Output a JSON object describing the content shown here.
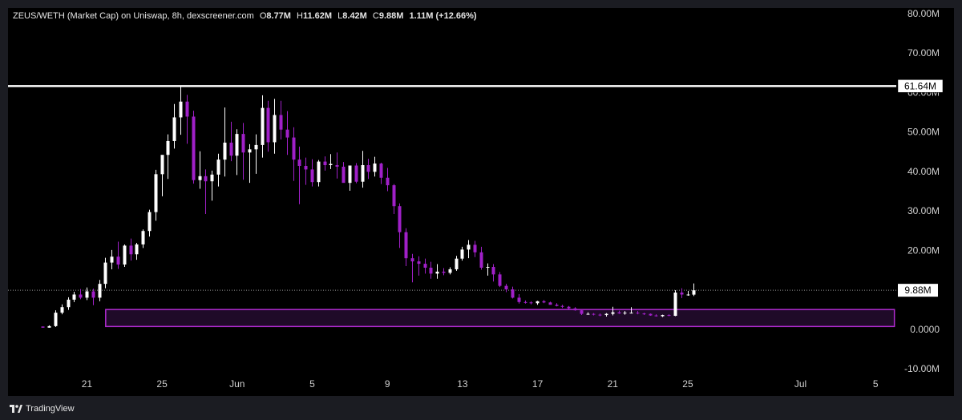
{
  "header": {
    "pair": "ZEUS/WETH (Market Cap) on Uniswap, 8h, dexscreener.com",
    "o_key": "O",
    "o_val": "8.77M",
    "h_key": "H",
    "h_val": "11.62M",
    "l_key": "L",
    "l_val": "8.42M",
    "c_key": "C",
    "c_val": "9.88M",
    "change": "1.11M (+12.66%)"
  },
  "footer": {
    "brand": "TradingView",
    "logo_icon": "tradingview-logo-icon"
  },
  "colors": {
    "up": "#ffffff",
    "down": "#a020c8",
    "zone_fill": "#1f0a28",
    "zone_stroke": "#b02bd0",
    "level_line": "#ffffff"
  },
  "chart_data": {
    "type": "candlestick",
    "title": "",
    "ylim": [
      -10,
      80
    ],
    "y_unit": "M",
    "y_ticks": [
      {
        "value": 80,
        "label": "80.00M"
      },
      {
        "value": 70,
        "label": "70.00M"
      },
      {
        "value": 60,
        "label": "60.00M"
      },
      {
        "value": 50,
        "label": "50.00M"
      },
      {
        "value": 40,
        "label": "40.00M"
      },
      {
        "value": 30,
        "label": "30.00M"
      },
      {
        "value": 20,
        "label": "20.00M"
      },
      {
        "value": 0,
        "label": "0.0000"
      },
      {
        "value": -10,
        "label": "-10.00M"
      }
    ],
    "x_ticks": [
      {
        "day": 21,
        "label": "21"
      },
      {
        "day": 25,
        "label": "25"
      },
      {
        "day": 29,
        "label": "Jun"
      },
      {
        "day": 33,
        "label": "5"
      },
      {
        "day": 37,
        "label": "9"
      },
      {
        "day": 41,
        "label": "13"
      },
      {
        "day": 45,
        "label": "17"
      },
      {
        "day": 49,
        "label": "21"
      },
      {
        "day": 53,
        "label": "25"
      },
      {
        "day": 59,
        "label": "Jul"
      },
      {
        "day": 63,
        "label": "5"
      }
    ],
    "x_range": [
      16.8,
      64.1
    ],
    "resistance": {
      "value": 61.64,
      "label": "61.64M"
    },
    "last_price": {
      "value": 9.88,
      "label": "9.88M"
    },
    "demand_zone": {
      "x_start": 22.0,
      "x_end": 64.0,
      "y_low": 0.7,
      "y_high": 5.0
    },
    "candles": [
      [
        0.7,
        0.7,
        0.4,
        0.4
      ],
      [
        0.4,
        1.0,
        0.4,
        0.8
      ],
      [
        0.8,
        4.8,
        0.6,
        4.2
      ],
      [
        4.2,
        6.3,
        3.8,
        5.6
      ],
      [
        5.6,
        8.1,
        4.9,
        7.5
      ],
      [
        7.5,
        9.5,
        6.9,
        8.8
      ],
      [
        8.8,
        10.2,
        7.6,
        8.0
      ],
      [
        8.0,
        10.6,
        7.4,
        9.6
      ],
      [
        9.6,
        10.3,
        6.1,
        8.0
      ],
      [
        8.0,
        12.5,
        7.1,
        11.5
      ],
      [
        11.5,
        18.1,
        10.4,
        16.9
      ],
      [
        16.9,
        20.1,
        15.2,
        18.4
      ],
      [
        18.4,
        22.2,
        15.3,
        16.4
      ],
      [
        16.4,
        21.5,
        15.8,
        21.2
      ],
      [
        21.2,
        23.0,
        17.4,
        19.0
      ],
      [
        19.0,
        21.9,
        17.6,
        21.5
      ],
      [
        21.5,
        25.3,
        20.6,
        24.9
      ],
      [
        24.9,
        30.3,
        23.5,
        29.7
      ],
      [
        29.7,
        40.4,
        27.5,
        39.3
      ],
      [
        39.3,
        44.0,
        33.7,
        44.2
      ],
      [
        44.2,
        49.4,
        38.1,
        47.7
      ],
      [
        47.7,
        57.1,
        45.8,
        53.7
      ],
      [
        53.7,
        61.6,
        49.3,
        57.7
      ],
      [
        57.7,
        59.4,
        47.0,
        53.9
      ],
      [
        53.9,
        55.4,
        36.9,
        37.8
      ],
      [
        37.8,
        45.1,
        35.6,
        38.8
      ],
      [
        38.8,
        40.5,
        29.2,
        37.5
      ],
      [
        37.5,
        40.2,
        32.6,
        39.2
      ],
      [
        39.2,
        44.5,
        36.2,
        43.0
      ],
      [
        43.0,
        56.2,
        38.7,
        47.3
      ],
      [
        47.3,
        52.6,
        42.6,
        44.0
      ],
      [
        44.0,
        50.7,
        39.1,
        49.5
      ],
      [
        49.5,
        52.3,
        37.9,
        44.8
      ],
      [
        44.8,
        46.9,
        37.1,
        45.6
      ],
      [
        45.6,
        49.4,
        39.4,
        46.7
      ],
      [
        46.7,
        59.3,
        43.5,
        56.1
      ],
      [
        56.1,
        57.9,
        45.0,
        47.4
      ],
      [
        47.4,
        58.4,
        44.5,
        54.3
      ],
      [
        54.3,
        57.9,
        48.1,
        50.6
      ],
      [
        50.6,
        55.3,
        44.2,
        48.6
      ],
      [
        48.6,
        51.2,
        37.6,
        43.0
      ],
      [
        43.0,
        46.3,
        31.7,
        41.4
      ],
      [
        41.4,
        43.5,
        36.6,
        40.5
      ],
      [
        40.5,
        43.1,
        36.2,
        37.3
      ],
      [
        37.3,
        42.9,
        36.2,
        42.5
      ],
      [
        42.5,
        43.8,
        40.2,
        41.6
      ],
      [
        41.6,
        44.4,
        40.6,
        41.9
      ],
      [
        41.6,
        44.8,
        38.2,
        41.2
      ],
      [
        41.2,
        42.4,
        37.4,
        37.1
      ],
      [
        37.1,
        41.2,
        35.1,
        41.5
      ],
      [
        41.5,
        42.1,
        37.0,
        37.4
      ],
      [
        37.4,
        45.2,
        35.9,
        41.6
      ],
      [
        41.6,
        43.2,
        38.1,
        39.9
      ],
      [
        39.9,
        43.7,
        38.7,
        42.0
      ],
      [
        42.0,
        42.2,
        36.8,
        38.4
      ],
      [
        38.4,
        40.9,
        35.0,
        36.5
      ],
      [
        36.5,
        36.8,
        29.2,
        31.2
      ],
      [
        31.2,
        31.9,
        20.6,
        24.6
      ],
      [
        24.6,
        25.6,
        16.0,
        18.0
      ],
      [
        18.0,
        19.1,
        11.9,
        17.2
      ],
      [
        17.2,
        18.5,
        13.6,
        16.6
      ],
      [
        16.6,
        17.9,
        14.1,
        15.6
      ],
      [
        15.6,
        17.1,
        12.8,
        14.1
      ],
      [
        14.1,
        16.5,
        12.8,
        14.6
      ],
      [
        14.6,
        15.5,
        13.7,
        14.3
      ],
      [
        14.3,
        15.7,
        13.9,
        15.2
      ],
      [
        15.2,
        18.6,
        14.8,
        17.9
      ],
      [
        17.9,
        20.9,
        17.4,
        20.2
      ],
      [
        20.2,
        22.6,
        18.0,
        21.4
      ],
      [
        21.4,
        22.4,
        18.3,
        19.5
      ],
      [
        19.5,
        20.9,
        15.1,
        15.6
      ],
      [
        15.6,
        16.7,
        13.6,
        15.8
      ],
      [
        15.8,
        16.5,
        12.1,
        13.9
      ],
      [
        13.9,
        14.5,
        10.7,
        11.0
      ],
      [
        11.0,
        11.5,
        9.4,
        10.1
      ],
      [
        10.1,
        10.8,
        7.8,
        8.0
      ],
      [
        8.0,
        8.9,
        6.5,
        6.9
      ],
      [
        6.9,
        7.3,
        6.5,
        6.8
      ],
      [
        6.8,
        7.1,
        6.3,
        6.6
      ],
      [
        6.6,
        7.2,
        6.2,
        7.1
      ],
      [
        7.1,
        7.4,
        6.6,
        6.8
      ],
      [
        6.8,
        7.0,
        6.4,
        6.2
      ],
      [
        6.2,
        6.6,
        5.8,
        5.9
      ],
      [
        5.9,
        6.2,
        5.4,
        5.7
      ],
      [
        5.7,
        5.9,
        5.1,
        5.3
      ],
      [
        5.3,
        5.6,
        4.7,
        4.8
      ],
      [
        4.8,
        4.9,
        3.6,
        3.9
      ],
      [
        3.9,
        4.3,
        3.7,
        3.9
      ],
      [
        3.9,
        4.1,
        3.5,
        3.7
      ],
      [
        3.7,
        4.0,
        3.3,
        3.6
      ],
      [
        3.6,
        4.1,
        3.2,
        3.9
      ],
      [
        3.9,
        5.7,
        3.5,
        4.3
      ],
      [
        4.3,
        4.7,
        3.9,
        4.0
      ],
      [
        4.0,
        4.6,
        3.7,
        4.2
      ],
      [
        4.2,
        5.6,
        4.0,
        4.2
      ],
      [
        4.2,
        4.6,
        3.8,
        4.0
      ],
      [
        4.0,
        4.2,
        3.6,
        3.9
      ],
      [
        3.9,
        4.0,
        3.4,
        3.5
      ],
      [
        3.5,
        3.8,
        3.2,
        3.3
      ],
      [
        3.3,
        3.7,
        3.1,
        3.6
      ],
      [
        3.6,
        3.8,
        3.3,
        3.4
      ],
      [
        3.4,
        9.9,
        3.3,
        9.3
      ],
      [
        9.3,
        10.4,
        7.9,
        8.8
      ],
      [
        8.8,
        9.7,
        8.5,
        8.8
      ],
      [
        8.77,
        11.62,
        8.42,
        9.88
      ]
    ]
  }
}
